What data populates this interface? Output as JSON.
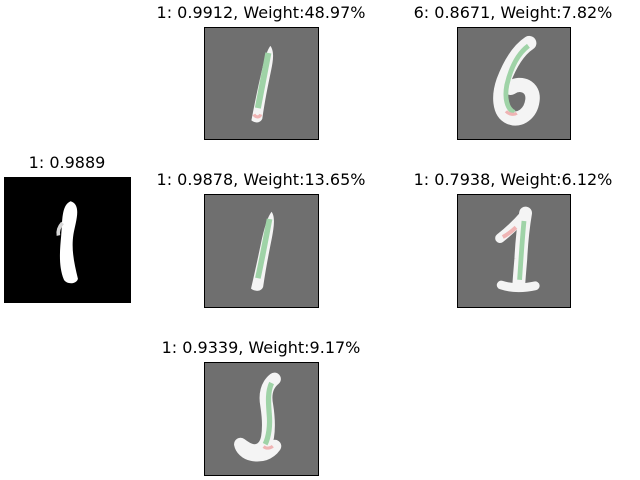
{
  "query": {
    "label": "1: 0.9889"
  },
  "explanations": [
    {
      "label": "1: 0.9912, Weight:48.97%"
    },
    {
      "label": "6: 0.8671, Weight:7.82%"
    },
    {
      "label": "1: 0.9878, Weight:13.65%"
    },
    {
      "label": "1: 0.7938, Weight:6.12%"
    },
    {
      "label": "1: 0.9339, Weight:9.17%"
    }
  ]
}
